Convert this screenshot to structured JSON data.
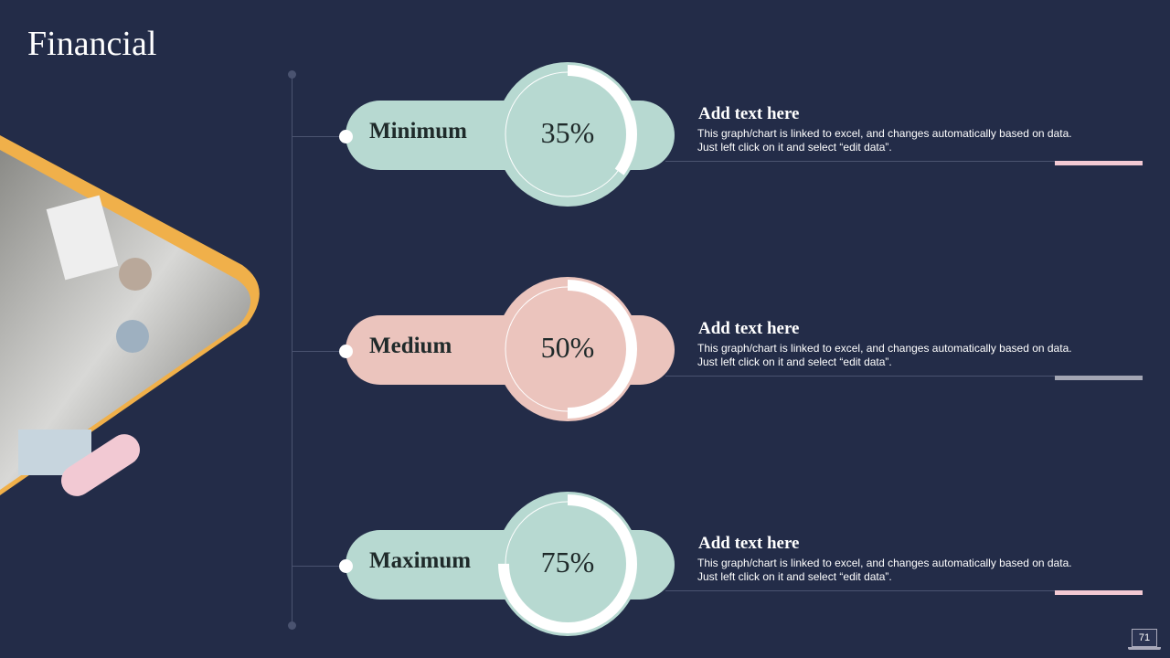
{
  "title": "Financial",
  "colors": {
    "background": "#232c48",
    "mint": "#b7d9d1",
    "pink": "#ebc4bd",
    "accent_pink": "#f2c9d3",
    "accent_gray": "#a3a6b4",
    "frame_orange": "#f0b04a"
  },
  "items": [
    {
      "label": "Minimum",
      "percent": 35,
      "percent_label": "35%",
      "color": "#b7d9d1",
      "accent": "#f2c9d3",
      "heading": "Add text here",
      "body": "This graph/chart is linked to excel, and changes automatically based on data. Just left click on it and select “edit data”."
    },
    {
      "label": "Medium",
      "percent": 50,
      "percent_label": "50%",
      "color": "#ebc4bd",
      "accent": "#a3a6b4",
      "heading": "Add text here",
      "body": "This graph/chart is linked to excel, and changes automatically based on data. Just left click on it and select “edit data”."
    },
    {
      "label": "Maximum",
      "percent": 75,
      "percent_label": "75%",
      "color": "#b7d9d1",
      "accent": "#f2c9d3",
      "heading": "Add text here",
      "body": "This graph/chart is linked to excel, and changes automatically based on data. Just left click on it and select “edit data”."
    }
  ],
  "image": {
    "icon": "photo-business-meeting-infographics"
  },
  "page_number": "71"
}
